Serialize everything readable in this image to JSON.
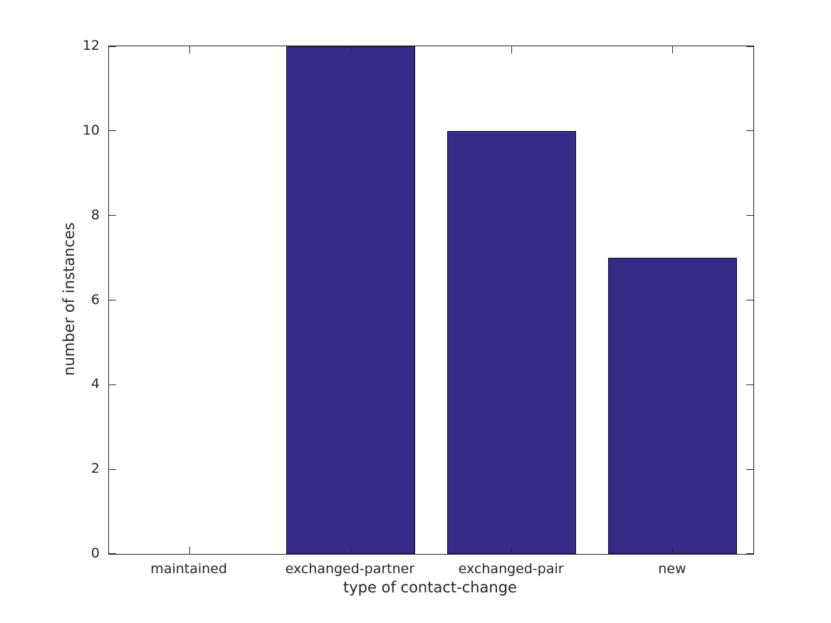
{
  "chart_data": {
    "type": "bar",
    "categories": [
      "maintained",
      "exchanged-partner",
      "exchanged-pair",
      "new"
    ],
    "values": [
      0,
      12,
      10,
      7
    ],
    "title": "",
    "xlabel": "type of contact-change",
    "ylabel": "number of instances",
    "ylim": [
      0,
      12
    ],
    "yticks": [
      0,
      2,
      4,
      6,
      8,
      10,
      12
    ],
    "ytick_labels": [
      "0",
      "2",
      "4",
      "6",
      "8",
      "10",
      "12"
    ],
    "bar_width_fraction": 0.8,
    "bar_color": "#342c86",
    "bar_edge_color": "#14141e",
    "axis_color": "#262626",
    "text_color": "#262626",
    "background_color": "#ffffff",
    "grid": false,
    "legend": "none",
    "tick_direction": "in",
    "box": true
  }
}
